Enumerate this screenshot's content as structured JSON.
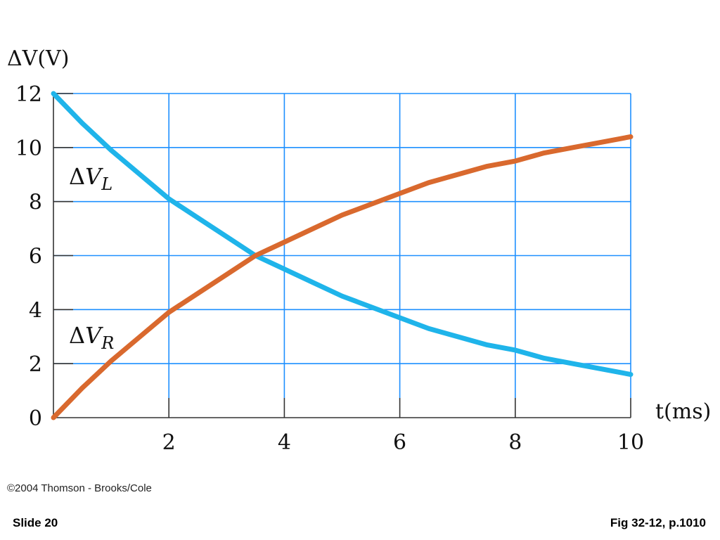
{
  "chart_data": {
    "type": "line",
    "ylabel": "ΔV(V)",
    "xlabel": "t(ms)",
    "xlim": [
      0,
      10
    ],
    "ylim": [
      0,
      12
    ],
    "x_ticks": [
      2,
      4,
      6,
      8,
      10
    ],
    "y_ticks": [
      0,
      2,
      4,
      6,
      8,
      10,
      12
    ],
    "grid": true,
    "colors": {
      "grid": "#1e90ff",
      "vl": "#1fb4ea",
      "vr": "#d9692e"
    },
    "series": [
      {
        "name": "ΔVL",
        "x": [
          0,
          0.5,
          1,
          1.5,
          2,
          2.5,
          3,
          3.5,
          4,
          4.5,
          5,
          5.5,
          6,
          6.5,
          7,
          7.5,
          8,
          8.5,
          9,
          9.5,
          10
        ],
        "y": [
          12.0,
          10.9,
          9.9,
          9.0,
          8.1,
          7.4,
          6.7,
          6.0,
          5.5,
          5.0,
          4.5,
          4.1,
          3.7,
          3.3,
          3.0,
          2.7,
          2.5,
          2.2,
          2.0,
          1.8,
          1.6
        ]
      },
      {
        "name": "ΔVR",
        "x": [
          0,
          0.5,
          1,
          1.5,
          2,
          2.5,
          3,
          3.5,
          4,
          4.5,
          5,
          5.5,
          6,
          6.5,
          7,
          7.5,
          8,
          8.5,
          9,
          9.5,
          10
        ],
        "y": [
          0.0,
          1.1,
          2.1,
          3.0,
          3.9,
          4.6,
          5.3,
          6.0,
          6.5,
          7.0,
          7.5,
          7.9,
          8.3,
          8.7,
          9.0,
          9.3,
          9.5,
          9.8,
          10.0,
          10.2,
          10.4
        ]
      }
    ]
  },
  "footer": {
    "copyright": "©2004 Thomson - Brooks/Cole",
    "slide": "Slide 20",
    "figure": "Fig 32-12, p.1010"
  }
}
